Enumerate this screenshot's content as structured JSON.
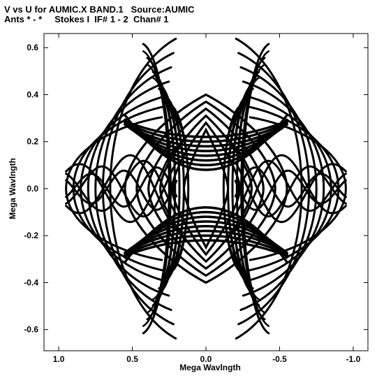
{
  "chart_data": {
    "type": "scatter",
    "title": "V vs U for AUMIC.X BAND.1   Source:AUMIC",
    "subtitle": "Ants * - *     Stokes I  IF# 1 - 2  Chan# 1",
    "xlabel": "Mega Wavlngth",
    "ylabel": "Mega Wavlngth",
    "xlim": [
      1.1,
      -1.1
    ],
    "ylim": [
      -0.69,
      0.66
    ],
    "x_reversed": true,
    "x_ticks": [
      1.0,
      0.5,
      0.0,
      -0.5,
      -1.0
    ],
    "x_tick_labels": [
      "1.0",
      "0.5",
      "0.0",
      "-0.5",
      "-1.0"
    ],
    "y_ticks": [
      0.6,
      0.4,
      0.2,
      0.0,
      -0.2,
      -0.4,
      -0.6
    ],
    "y_tick_labels": [
      "0.6",
      "0.4",
      "0.2",
      "0.0",
      "-0.2",
      "-0.4",
      "-0.6"
    ],
    "grid": false,
    "marker_color": "#000000",
    "tracks": {
      "outer_arcs": [
        {
          "a": 0.95,
          "b": 0.2
        },
        {
          "a": 0.9,
          "b": 0.23
        },
        {
          "a": 0.85,
          "b": 0.26
        },
        {
          "a": 0.8,
          "b": 0.3
        },
        {
          "a": 0.75,
          "b": 0.34
        },
        {
          "a": 0.7,
          "b": 0.38
        },
        {
          "a": 0.65,
          "b": 0.42
        }
      ],
      "inner_arcs": [
        {
          "a": 0.55,
          "b": 0.22
        },
        {
          "a": 0.47,
          "b": 0.19
        },
        {
          "a": 0.39,
          "b": 0.16
        },
        {
          "a": 0.31,
          "b": 0.13
        },
        {
          "a": 0.23,
          "b": 0.1
        },
        {
          "a": 0.15,
          "b": 0.07
        }
      ],
      "tall_arcs": [
        {
          "a": 0.2,
          "b": 0.62,
          "cx": 0.45
        },
        {
          "a": 0.18,
          "b": 0.56,
          "cx": 0.42
        },
        {
          "a": 0.17,
          "b": 0.5,
          "cx": 0.38
        },
        {
          "a": 0.16,
          "b": 0.45,
          "cx": 0.34
        },
        {
          "a": 0.15,
          "b": 0.4,
          "cx": 0.3
        },
        {
          "a": 0.14,
          "b": 0.36,
          "cx": 0.26
        }
      ],
      "hyperbolas": [
        {
          "y0": 0.22,
          "c": 0.1
        },
        {
          "y0": 0.2,
          "c": 0.12
        },
        {
          "y0": 0.18,
          "c": 0.14
        },
        {
          "y0": 0.16,
          "c": 0.17
        },
        {
          "y0": 0.14,
          "c": 0.2
        },
        {
          "y0": 0.12,
          "c": 0.24
        },
        {
          "y0": 0.1,
          "c": 0.29
        },
        {
          "y0": 0.08,
          "c": 0.35
        }
      ],
      "criss_cross": [
        {
          "b": 0.18,
          "freq": 9.0
        },
        {
          "b": 0.14,
          "freq": 11.0
        },
        {
          "b": 0.1,
          "freq": 14.0
        }
      ]
    }
  }
}
